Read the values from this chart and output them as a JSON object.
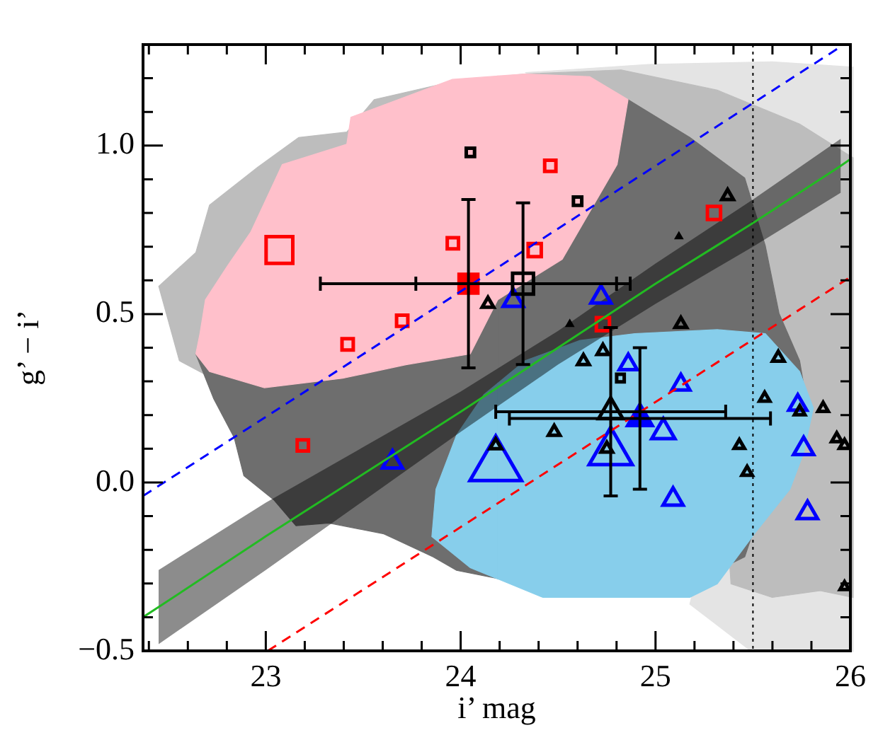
{
  "chart_data": {
    "type": "scatter",
    "xlabel": "i’ mag",
    "ylabel": "g’ − i’",
    "xlim": [
      22.37,
      26.0
    ],
    "ylim": [
      -0.5,
      1.3
    ],
    "xticks": [
      {
        "value": 22.4,
        "label": null
      },
      {
        "value": 22.6,
        "label": null
      },
      {
        "value": 22.8,
        "label": null
      },
      {
        "value": 23,
        "label": "23"
      },
      {
        "value": 23.2,
        "label": null
      },
      {
        "value": 23.4,
        "label": null
      },
      {
        "value": 23.6,
        "label": null
      },
      {
        "value": 23.8,
        "label": null
      },
      {
        "value": 24,
        "label": "24"
      },
      {
        "value": 24.2,
        "label": null
      },
      {
        "value": 24.4,
        "label": null
      },
      {
        "value": 24.6,
        "label": null
      },
      {
        "value": 24.8,
        "label": null
      },
      {
        "value": 25,
        "label": "25"
      },
      {
        "value": 25.2,
        "label": null
      },
      {
        "value": 25.4,
        "label": null
      },
      {
        "value": 25.6,
        "label": null
      },
      {
        "value": 25.8,
        "label": null
      },
      {
        "value": 26,
        "label": "26"
      }
    ],
    "yticks": [
      {
        "value": -0.5,
        "label": "−0.5"
      },
      {
        "value": -0.4,
        "label": null
      },
      {
        "value": -0.3,
        "label": null
      },
      {
        "value": -0.2,
        "label": null
      },
      {
        "value": -0.1,
        "label": null
      },
      {
        "value": 0,
        "label": "0.0"
      },
      {
        "value": 0.1,
        "label": null
      },
      {
        "value": 0.2,
        "label": null
      },
      {
        "value": 0.3,
        "label": null
      },
      {
        "value": 0.4,
        "label": null
      },
      {
        "value": 0.5,
        "label": "0.5"
      },
      {
        "value": 0.6,
        "label": null
      },
      {
        "value": 0.7,
        "label": null
      },
      {
        "value": 0.8,
        "label": null
      },
      {
        "value": 0.9,
        "label": null
      },
      {
        "value": 1.0,
        "label": "1.0"
      },
      {
        "value": 1.1,
        "label": null
      },
      {
        "value": 1.2,
        "label": null
      },
      {
        "value": 1.3,
        "label": null
      }
    ],
    "grid": false,
    "legend": false,
    "ref_lines": [
      {
        "axis": "x",
        "value": 25.5,
        "color": "#000000",
        "line_style": "dotted"
      }
    ],
    "series": [
      {
        "type": "line",
        "color": "#0000ff",
        "line_style": "dashed",
        "x": [
          22.37,
          25.94
        ],
        "values": [
          -0.04,
          1.29
        ]
      },
      {
        "type": "line",
        "color": "#22bb22",
        "line_style": "solid",
        "x": [
          22.37,
          22.45,
          23.0,
          24.0,
          24.5,
          25.0,
          25.5,
          25.95,
          26.0
        ],
        "values": [
          -0.4,
          -0.37,
          -0.16,
          0.21,
          0.4,
          0.59,
          0.77,
          0.94,
          0.96
        ],
        "lower": [
          null,
          -0.48,
          -0.26,
          0.15,
          0.35,
          0.53,
          0.7,
          0.86,
          null
        ],
        "upper": [
          null,
          -0.26,
          -0.06,
          0.27,
          0.45,
          0.65,
          0.84,
          1.02,
          null
        ]
      },
      {
        "type": "line",
        "color": "#ff0000",
        "line_style": "dashed",
        "x": [
          23.01,
          26.0
        ],
        "values": [
          -0.5,
          0.61
        ]
      },
      {
        "type": "bubble",
        "color": "#ff0000",
        "marker": "square",
        "x": [
          23.07,
          23.96,
          23.42,
          23.7,
          24.46,
          24.38,
          25.3,
          24.73,
          23.19
        ],
        "values": [
          0.69,
          0.71,
          0.41,
          0.48,
          0.94,
          0.69,
          0.8,
          0.47,
          0.11
        ],
        "sizes": [
          0.62,
          0.11,
          0.11,
          0.11,
          0.11,
          0.15,
          0.15,
          0.15,
          0.11
        ]
      },
      {
        "type": "bubble",
        "color": "#000000",
        "marker": "square",
        "x": [
          24.05,
          24.6,
          24.82,
          24.32
        ],
        "values": [
          0.98,
          0.835,
          0.31,
          0.59
        ],
        "sizes": [
          0.06,
          0.06,
          0.05,
          0.38
        ],
        "errors": [
          null,
          null,
          null,
          0.24
        ],
        "xerrors": [
          null,
          null,
          null,
          0.55
        ]
      },
      {
        "type": "scatter",
        "color": "#ff0000",
        "marker": "square",
        "x": [
          24.04
        ],
        "values": [
          0.59
        ],
        "sizes": [
          0.38
        ],
        "errors": [
          0.25
        ],
        "xerrors": [
          0.76
        ]
      },
      {
        "type": "bubble",
        "color": "#000000",
        "marker": "triangle",
        "x": [
          24.14,
          25.37,
          25.13,
          24.73,
          24.63,
          25.63,
          24.48,
          24.18,
          24.75,
          25.43,
          25.47,
          25.56,
          25.86,
          25.93,
          25.97,
          25.97,
          25.74,
          24.77
        ],
        "values": [
          0.53,
          0.85,
          0.47,
          0.39,
          0.36,
          0.37,
          0.15,
          0.11,
          0.1,
          0.11,
          0.03,
          0.25,
          0.22,
          0.13,
          0.11,
          -0.31,
          0.21,
          0.21
        ],
        "sizes": [
          0.05,
          0.05,
          0.05,
          0.05,
          0.05,
          0.05,
          0.05,
          0.05,
          0.05,
          0.04,
          0.04,
          0.04,
          0.04,
          0.04,
          0.04,
          0.03,
          0.04,
          0.22
        ],
        "errors": [
          null,
          null,
          null,
          null,
          null,
          null,
          null,
          null,
          null,
          null,
          null,
          null,
          null,
          null,
          null,
          null,
          null,
          0.25
        ],
        "xerrors": [
          null,
          null,
          null,
          null,
          null,
          null,
          null,
          null,
          null,
          null,
          null,
          null,
          null,
          null,
          null,
          null,
          null,
          0.59
        ]
      },
      {
        "type": "scatter",
        "color": "#000000",
        "marker": "triangle",
        "x": [
          25.12,
          24.56
        ],
        "values": [
          0.73,
          0.47
        ],
        "sizes": [
          0.02,
          0.02
        ]
      },
      {
        "type": "bubble",
        "color": "#0000ff",
        "marker": "triangle",
        "x": [
          23.65,
          24.18,
          24.27,
          24.72,
          24.86,
          25.13,
          25.04,
          24.77,
          25.09,
          25.73,
          25.76,
          25.78
        ],
        "values": [
          0.06,
          0.05,
          0.54,
          0.55,
          0.35,
          0.29,
          0.15,
          0.09,
          -0.05,
          0.23,
          0.1,
          -0.09
        ],
        "sizes": [
          0.15,
          1.0,
          0.15,
          0.15,
          0.12,
          0.12,
          0.2,
          0.7,
          0.15,
          0.12,
          0.15,
          0.15
        ]
      },
      {
        "type": "scatter",
        "color": "#0000ff",
        "marker": "triangle",
        "x": [
          24.92
        ],
        "values": [
          0.19
        ],
        "sizes": [
          0.3
        ],
        "errors": [
          0.21
        ],
        "xerrors": [
          0.67
        ]
      }
    ]
  }
}
